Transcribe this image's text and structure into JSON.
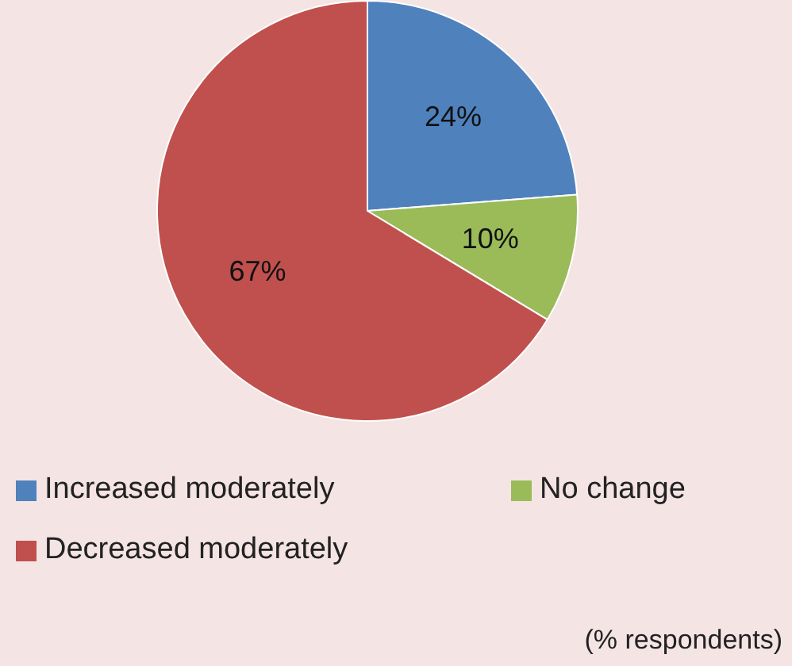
{
  "chart_data": {
    "type": "pie",
    "categories": [
      "Increased moderately",
      "No change",
      "Decreased moderately"
    ],
    "values": [
      24,
      10,
      67
    ],
    "colors": [
      "#4f81bd",
      "#9bbb59",
      "#c0504d"
    ],
    "value_labels": [
      "24%",
      "10%",
      "67%"
    ],
    "legend": "bottom",
    "annotations": [
      "(% respondents)"
    ]
  }
}
